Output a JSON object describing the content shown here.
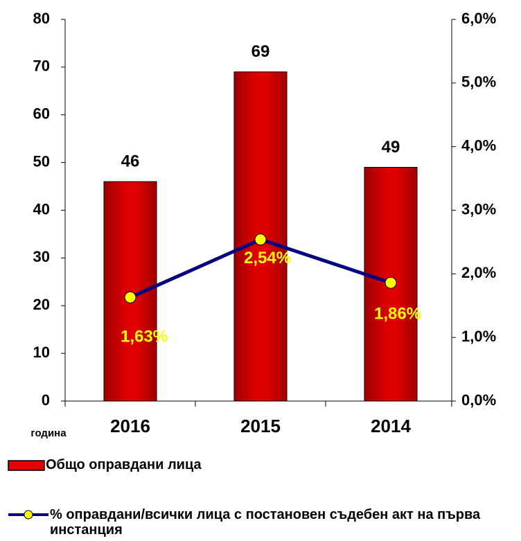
{
  "chart_data": {
    "type": "bar_line",
    "x_label": "година",
    "categories": [
      "2016",
      "2015",
      "2014"
    ],
    "series": [
      {
        "name": "Общо оправдани лица",
        "color": "#e00000",
        "values": [
          46,
          69,
          49
        ]
      },
      {
        "name": "% оправдани/всички лица с постановен съдебен акт на първа инстанция",
        "color": "#000080",
        "marker_color": "#ffff00",
        "axis": "y2",
        "values": [
          1.63,
          2.54,
          1.86
        ],
        "value_labels": [
          "1,63%",
          "2,54%",
          "1,86%"
        ],
        "value_label_color": "#ffff00"
      }
    ],
    "ylim": [
      0,
      80
    ],
    "yticks": [
      0,
      10,
      20,
      30,
      40,
      50,
      60,
      70,
      80
    ],
    "y2lim": [
      0,
      6
    ],
    "y2ticks": [
      {
        "value": 0,
        "label": "0,0%"
      },
      {
        "value": 1,
        "label": "1,0%"
      },
      {
        "value": 2,
        "label": "2,0%"
      },
      {
        "value": 3,
        "label": "3,0%"
      },
      {
        "value": 4,
        "label": "4,0%"
      },
      {
        "value": 5,
        "label": "5,0%"
      },
      {
        "value": 6,
        "label": "6,0%"
      }
    ],
    "legend": "bottom"
  }
}
